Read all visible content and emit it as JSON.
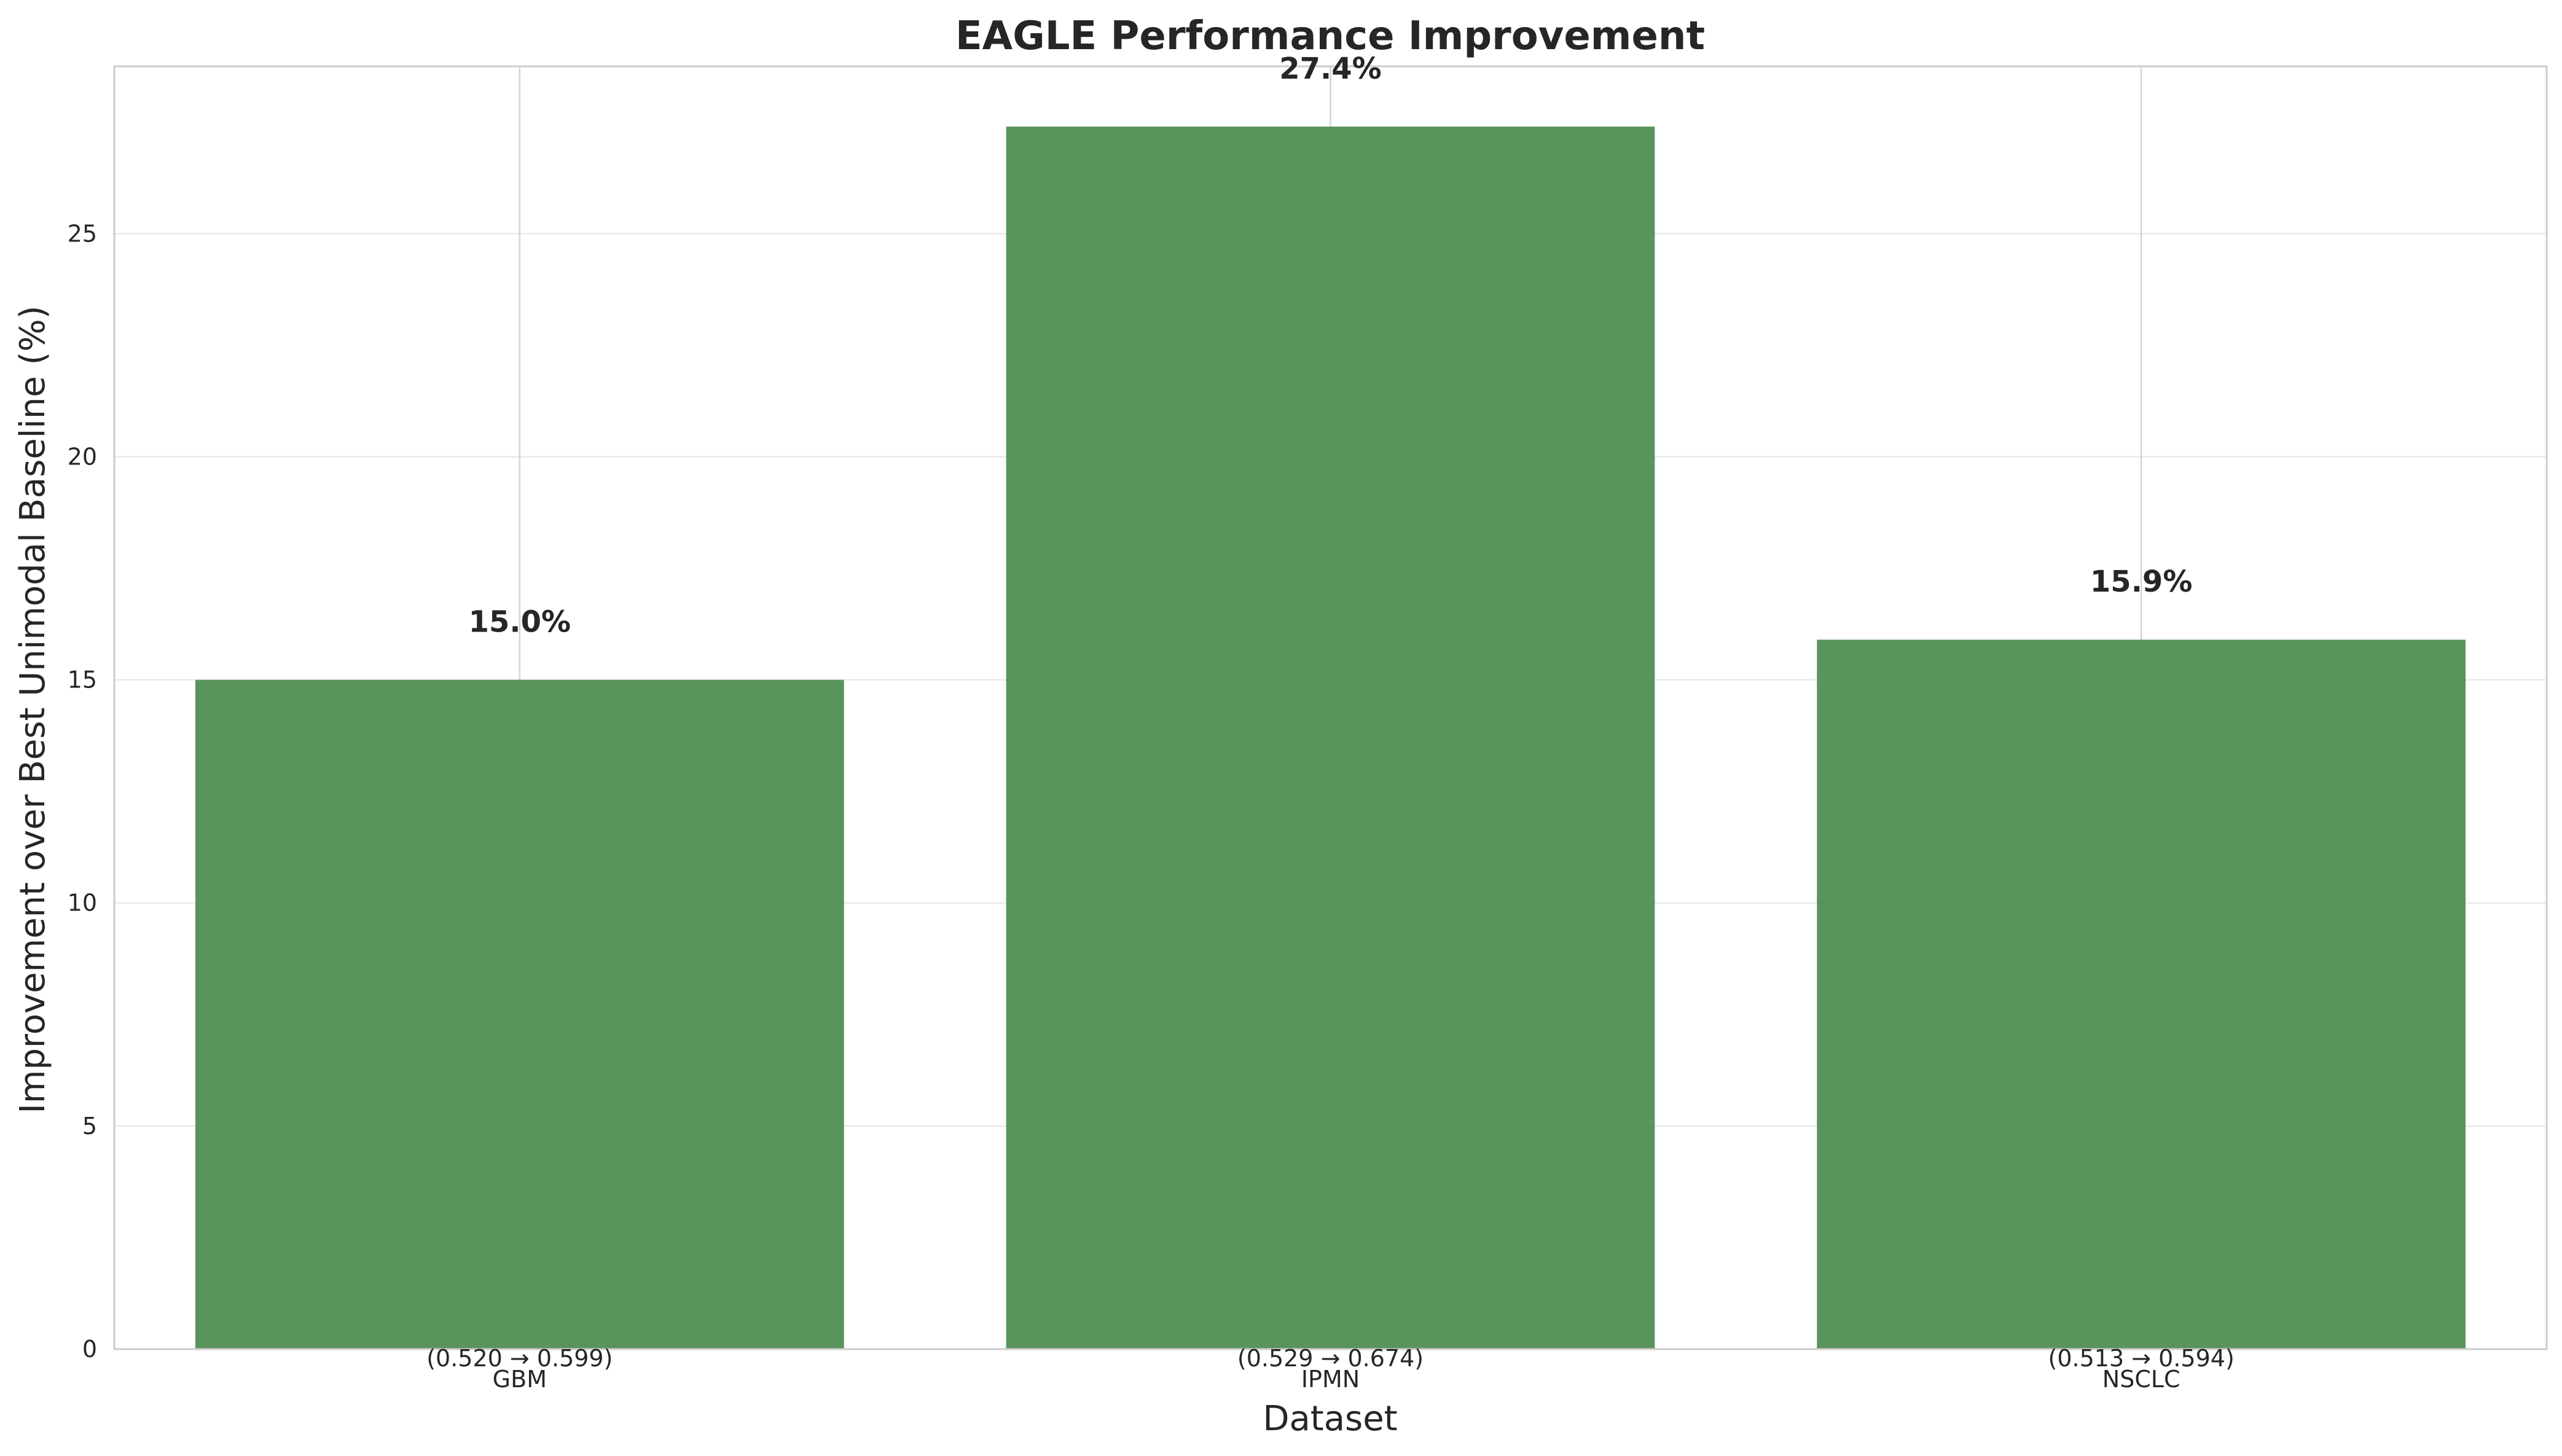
{
  "chart_data": {
    "type": "bar",
    "title": "EAGLE Performance Improvement",
    "xlabel": "Dataset",
    "ylabel": "Improvement over Best Unimodal Baseline (%)",
    "categories": [
      "GBM",
      "IPMN",
      "NSCLC"
    ],
    "values": [
      15.0,
      27.4,
      15.9
    ],
    "value_labels": [
      "15.0%",
      "27.4%",
      "15.9%"
    ],
    "sub_labels": [
      "(0.520 → 0.599)",
      "(0.529 → 0.674)",
      "(0.513 → 0.594)"
    ],
    "ylim": [
      0,
      28.75
    ],
    "yticks": [
      0,
      5,
      10,
      15,
      20,
      25
    ],
    "grid": true,
    "colors": {
      "bar": "#4a8b4e",
      "grid": "#e5e5e5",
      "vgrid": "#cccccc",
      "axis": "#cccccc"
    }
  }
}
